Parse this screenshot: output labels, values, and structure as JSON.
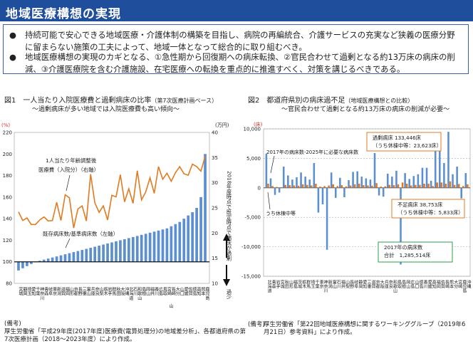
{
  "header": {
    "title": "地域医療構想の実現"
  },
  "bullets": [
    "持続可能で安心できる地域医療・介護体制の構築を目指し、病院の再編統合、介護サービスの充実など狭義の医療分野に留まらない施策の工夫によって、地域一体となって総合的に取り組むべき。",
    "地域医療構想の実現のカギとなる、①急性期から回復期への病床転換、②官民合わせて過剰となる約13万床の病床の削減、③介護医療院を含む介護施設、在宅医療への転換を重点的に推進すべく、対策を講じるべきである。"
  ],
  "bullet_symbol": "●",
  "colors": {
    "title_bg": "#1f4e9c",
    "bar_blue": "#5b8fd0",
    "line_orange": "#e07b22",
    "excess_green": "#2e9e4f"
  },
  "chart_data": [
    {
      "type": "bar",
      "title": "図1　一人当たり入院医療費と過剰病床の比率",
      "title_note": "（第7次医療計画ベース）",
      "subtitle": "～過剰病床が多い地域では入院医療費も高い傾向～",
      "left_axis": {
        "unit": "(%)",
        "ticks": [
          80,
          100,
          120,
          140,
          160,
          180,
          200,
          220
        ],
        "range": [
          80,
          220
        ]
      },
      "right_axis": {
        "unit": "(万円)",
        "ticks": [
          10,
          15,
          20,
          25,
          30,
          35,
          40
        ],
        "range": [
          10,
          40
        ]
      },
      "right_axis_label": "2018年度時点で既定時点で病床が過剰",
      "right_axis_label_bottom": "過少",
      "series": [
        {
          "name": "既存病床数/基準病床数（左軸）",
          "kind": "bar",
          "values": [
            92,
            94,
            96,
            98,
            100,
            101,
            102,
            103,
            104,
            105,
            106,
            107,
            108,
            109,
            110,
            111,
            112,
            113,
            114,
            115,
            116,
            117,
            118,
            119,
            120,
            121,
            122,
            123,
            124,
            125,
            126,
            127,
            128,
            129,
            130,
            131,
            133,
            135,
            137,
            140,
            143,
            146,
            150,
            160,
            200
          ]
        },
        {
          "name": "1人当たり年齢調整後医療費（入院分）（右軸）",
          "kind": "line",
          "values": [
            24.2,
            22.5,
            23.0,
            21.7,
            21.7,
            22.6,
            23.2,
            22.4,
            22.5,
            26.1,
            22.5,
            27.6,
            27.0,
            21.0,
            24.8,
            25.4,
            22.4,
            31.7,
            26.0,
            24.1,
            25.4,
            22.6,
            27.5,
            27.2,
            31.6,
            26.2,
            28.8,
            25.9,
            32.4,
            26.6,
            28.2,
            31.0,
            27.9,
            33.2,
            30.7,
            31.9,
            30.3,
            32.0,
            33.2,
            31.8,
            31.5,
            33.7,
            33.2,
            32.3,
            35.3
          ]
        }
      ],
      "categories": [
        "宮城",
        "静岡",
        "埼玉",
        "愛知",
        "千葉",
        "神奈川",
        "青森",
        "岐阜",
        "東京",
        "新潟",
        "滋賀",
        "福岡",
        "山形",
        "京都",
        "長野",
        "三重",
        "富山",
        "兵庫",
        "奈良",
        "山梨",
        "栃木",
        "岩手",
        "群馬",
        "秋田",
        "大阪",
        "沖縄",
        "北海道",
        "石川",
        "和歌山",
        "島根",
        "岡山",
        "福井",
        "香川",
        "広島",
        "鳥取",
        "宮崎",
        "長崎",
        "大分",
        "山口",
        "愛媛",
        "佐賀",
        "徳島",
        "高知",
        "熊本",
        "鹿児島"
      ],
      "xlabel_extra": "山",
      "annotations": [
        "1人当たり年齢調整後医療費（入院分）（右軸）",
        "既存病床数/基準病床数（左軸）"
      ],
      "note_label": "(備考)",
      "note": "厚生労働省「平成29年度(2017年度)医療費(電算処理分)の地域差分析」、各都道府県の第7次医療計画（2018～2023年度）により作成。"
    },
    {
      "type": "bar",
      "title": "図2　都道府県別の病床過不足",
      "title_note": "（地域医療構想との比較）",
      "subtitle": "～官民合わせて過剰となる約13万床の病床の削減が必要～",
      "y_unit": "(床)",
      "ylim": [
        -15000,
        10000
      ],
      "yticks": [
        10000,
        5000,
        0,
        -5000,
        -10000,
        -15000
      ],
      "ytick_labels": [
        "10,000",
        "5,000",
        "0",
        "-5,000",
        "-10,000",
        "-15,000"
      ],
      "series": [
        {
          "name": "2017年の病床数-2025年に必要な病床数",
          "kind": "bar",
          "values": [
            5800,
            1600,
            -1200,
            -800,
            3600,
            2100,
            1400,
            1800,
            2600,
            1900,
            1400,
            4200,
            -4200,
            -2800,
            -10500,
            2600,
            -1700,
            1700,
            -1600,
            1300,
            2700,
            2800,
            1900,
            1600,
            1400,
            5900,
            -1300,
            -1500,
            2400,
            1900,
            2900,
            -13000,
            2500,
            1500,
            2000,
            2300,
            3400,
            3400,
            1200,
            6400,
            6300,
            4200,
            9500,
            2300,
            3600,
            -1800,
            2500
          ]
        },
        {
          "name": "うち休棟中等",
          "kind": "bar",
          "values": [
            700,
            300,
            150,
            100,
            500,
            450,
            400,
            350,
            600,
            500,
            400,
            700,
            200,
            300,
            400,
            600,
            300,
            450,
            250,
            400,
            600,
            700,
            450,
            400,
            350,
            800,
            200,
            250,
            500,
            450,
            600,
            900,
            700,
            400,
            500,
            500,
            700,
            700,
            300,
            900,
            900,
            700,
            1100,
            500,
            650,
            300,
            600
          ]
        }
      ],
      "categories": [
        "北海道",
        "青森",
        "岩手",
        "宮城",
        "秋田",
        "山形",
        "福島",
        "茨城",
        "栃木",
        "群馬",
        "埼玉",
        "千葉",
        "東京",
        "神奈川",
        "新潟",
        "富山",
        "石川",
        "福井",
        "山梨",
        "長野",
        "岐阜",
        "静岡",
        "愛知",
        "三重",
        "滋賀",
        "京都",
        "大阪",
        "兵庫",
        "奈良",
        "和歌山",
        "鳥取",
        "島根",
        "岡山",
        "広島",
        "山口",
        "徳島",
        "香川",
        "愛媛",
        "高知",
        "福岡",
        "佐賀",
        "長崎",
        "熊本",
        "大分",
        "宮崎",
        "鹿児島",
        "沖縄"
      ],
      "legend_boxes": [
        {
          "title": "過剰病床 133,446床",
          "sub": "（うち休棟中等：23,623床）"
        },
        {
          "title": "不足病床 38,753床",
          "sub": "（うち休棟中等：5,833床）"
        },
        {
          "title": "2017年の病床数",
          "sub": "合計　1,285,514床"
        }
      ],
      "annotations": [
        "2017年の病床数-2025年に必要な病床数",
        "うち休棟中等"
      ],
      "note_label": "(備考)",
      "note": "厚生労働省「第22回地域医療構想に関するワーキンググループ（2019年6月21日）参考資料」により作成。"
    }
  ]
}
